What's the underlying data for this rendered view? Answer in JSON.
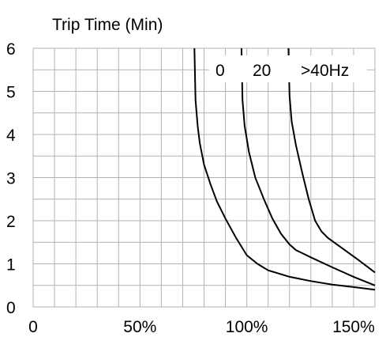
{
  "chart_data": {
    "type": "line",
    "title": "Trip Time (Min)",
    "xlabel": "",
    "ylabel": "",
    "xlim": [
      0,
      160
    ],
    "ylim": [
      0,
      6
    ],
    "x_ticks": [
      {
        "value": 0,
        "label": "0"
      },
      {
        "value": 50,
        "label": "50%"
      },
      {
        "value": 100,
        "label": "100%"
      },
      {
        "value": 150,
        "label": "150%"
      }
    ],
    "y_ticks": [
      {
        "value": 0,
        "label": "0"
      },
      {
        "value": 1,
        "label": "1"
      },
      {
        "value": 2,
        "label": "2"
      },
      {
        "value": 3,
        "label": "3"
      },
      {
        "value": 4,
        "label": "4"
      },
      {
        "value": 5,
        "label": "5"
      },
      {
        "value": 6,
        "label": "6"
      }
    ],
    "grid": true,
    "grid_x_step": 10,
    "grid_y_step": 0.5,
    "legend_labels": [
      "0",
      "20",
      ">40Hz"
    ],
    "series": [
      {
        "name": "0",
        "points": [
          [
            75.5,
            6.0
          ],
          [
            76,
            4.8
          ],
          [
            77,
            4.2
          ],
          [
            78,
            3.8
          ],
          [
            80,
            3.3
          ],
          [
            83,
            2.85
          ],
          [
            86,
            2.45
          ],
          [
            90,
            2.05
          ],
          [
            95,
            1.6
          ],
          [
            100,
            1.2
          ],
          [
            105,
            1.0
          ],
          [
            110,
            0.85
          ],
          [
            120,
            0.7
          ],
          [
            130,
            0.6
          ],
          [
            140,
            0.52
          ],
          [
            150,
            0.46
          ],
          [
            160,
            0.4
          ]
        ]
      },
      {
        "name": "20",
        "points": [
          [
            97.5,
            6.0
          ],
          [
            98,
            4.8
          ],
          [
            99,
            4.2
          ],
          [
            101,
            3.6
          ],
          [
            104,
            3.0
          ],
          [
            108,
            2.5
          ],
          [
            112,
            2.05
          ],
          [
            116,
            1.7
          ],
          [
            120,
            1.45
          ],
          [
            123,
            1.32
          ],
          [
            130,
            1.15
          ],
          [
            140,
            0.92
          ],
          [
            150,
            0.7
          ],
          [
            160,
            0.5
          ]
        ]
      },
      {
        "name": ">40Hz",
        "points": [
          [
            119.5,
            6.0
          ],
          [
            120,
            4.9
          ],
          [
            121,
            4.3
          ],
          [
            123,
            3.75
          ],
          [
            126,
            3.1
          ],
          [
            129,
            2.5
          ],
          [
            132,
            2.0
          ],
          [
            135,
            1.75
          ],
          [
            138,
            1.6
          ],
          [
            145,
            1.35
          ],
          [
            152,
            1.1
          ],
          [
            160,
            0.8
          ]
        ]
      }
    ]
  }
}
